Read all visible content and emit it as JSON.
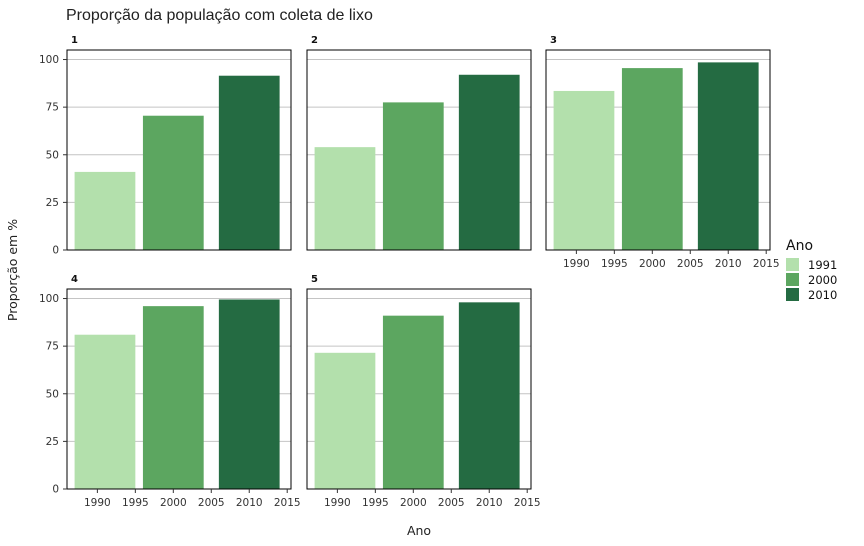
{
  "chart_data": {
    "type": "bar",
    "title": "Proporção da população com coleta de lixo",
    "xlabel": "Ano",
    "ylabel": "Proporção em %",
    "ylim": [
      0,
      105
    ],
    "xlim": [
      1986,
      2015.5
    ],
    "x_ticks": [
      "1990",
      "1995",
      "2000",
      "2005",
      "2010",
      "2015"
    ],
    "y_ticks": [
      "0",
      "25",
      "50",
      "75",
      "100"
    ],
    "grid": true,
    "legend": {
      "title": "Ano",
      "placement": "right",
      "entries": [
        "1991",
        "2000",
        "2010"
      ]
    },
    "colors": {
      "1991": "#b3e0ac",
      "2000": "#5ca660",
      "2010": "#246b42"
    },
    "bar_width_years": 8,
    "panels": [
      {
        "label": "1",
        "bars": [
          {
            "x": 1991,
            "value": 41
          },
          {
            "x": 2000,
            "value": 70.5
          },
          {
            "x": 2010,
            "value": 91.5
          }
        ]
      },
      {
        "label": "2",
        "bars": [
          {
            "x": 1991,
            "value": 54
          },
          {
            "x": 2000,
            "value": 77.5
          },
          {
            "x": 2010,
            "value": 92
          }
        ]
      },
      {
        "label": "3",
        "bars": [
          {
            "x": 1991,
            "value": 83.5
          },
          {
            "x": 2000,
            "value": 95.5
          },
          {
            "x": 2010,
            "value": 98.5
          }
        ]
      },
      {
        "label": "4",
        "bars": [
          {
            "x": 1991,
            "value": 81
          },
          {
            "x": 2000,
            "value": 96
          },
          {
            "x": 2010,
            "value": 99.5
          }
        ]
      },
      {
        "label": "5",
        "bars": [
          {
            "x": 1991,
            "value": 71.5
          },
          {
            "x": 2000,
            "value": 91
          },
          {
            "x": 2010,
            "value": 98
          }
        ]
      }
    ]
  }
}
